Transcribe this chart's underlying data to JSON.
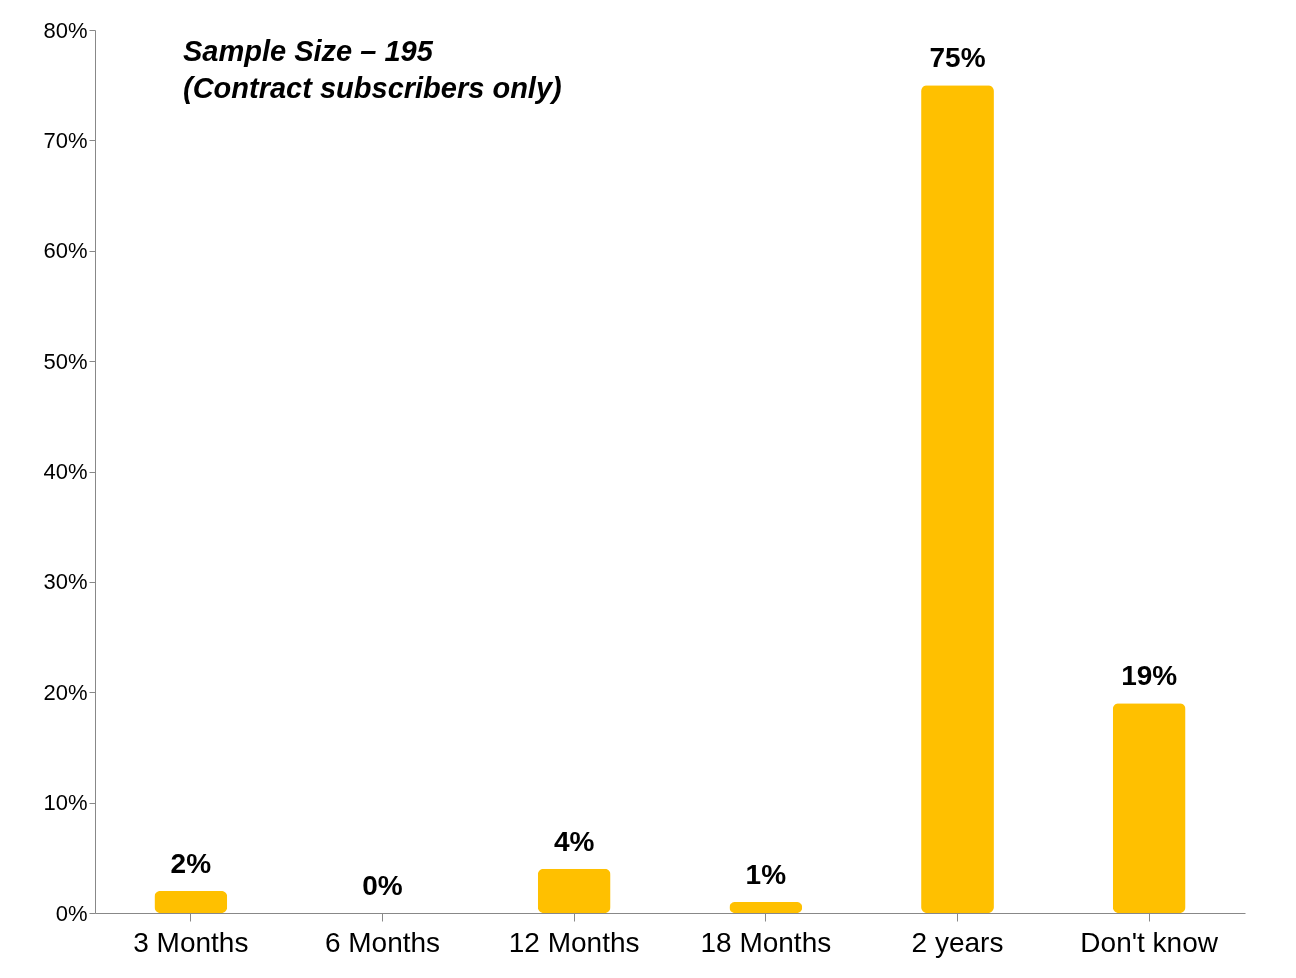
{
  "chart_data": {
    "type": "bar",
    "categories": [
      "3 Months",
      "6 Months",
      "12 Months",
      "18 Months",
      "2 years",
      "Don't know"
    ],
    "values": [
      2,
      0,
      4,
      1,
      75,
      19
    ],
    "value_labels": [
      "2%",
      "0%",
      "4%",
      "1%",
      "75%",
      "19%"
    ],
    "color": "#ffc000",
    "ylim": [
      0,
      80
    ],
    "yticks": [
      {
        "value": 0,
        "label": "0%"
      },
      {
        "value": 10,
        "label": "10%"
      },
      {
        "value": 20,
        "label": "20%"
      },
      {
        "value": 30,
        "label": "30%"
      },
      {
        "value": 40,
        "label": "40%"
      },
      {
        "value": 50,
        "label": "50%"
      },
      {
        "value": 60,
        "label": "60%"
      },
      {
        "value": 70,
        "label": "70%"
      },
      {
        "value": 80,
        "label": "80%"
      }
    ],
    "annotations": [
      "Sample Size – 195",
      "(Contract subscribers only)"
    ],
    "grid": false
  }
}
